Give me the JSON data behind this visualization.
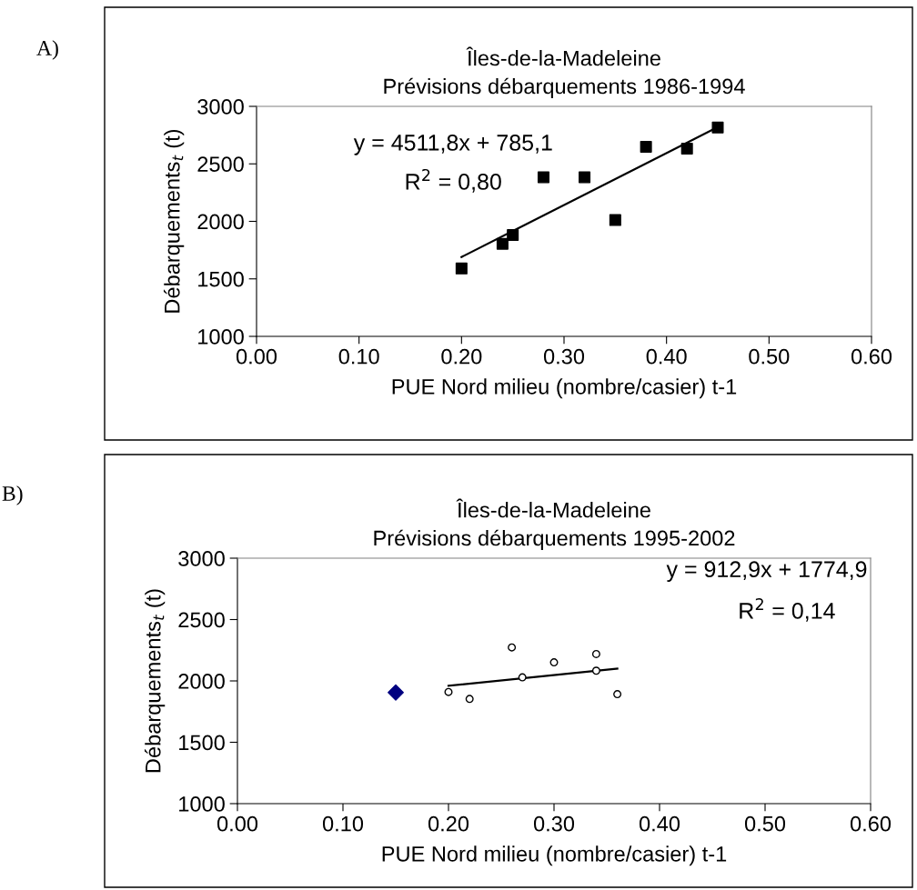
{
  "chart_data": [
    {
      "type": "scatter",
      "title": "Îles-de-la-Madeleine\nPrévisions débarquements 1986-1994",
      "xlabel": "PUE Nord milieu (nombre/casier) t-1",
      "ylabel": "Débarquements$_{t}$ (t)",
      "annotations": [
        "A)",
        "y = 4511,8x + 785,1",
        "R$^{2}$ = 0,80"
      ],
      "series": [
        {
          "marker": "square",
          "color": "#000000",
          "x": [
            0.2,
            0.24,
            0.25,
            0.28,
            0.32,
            0.35,
            0.38,
            0.42,
            0.45
          ],
          "values": [
            1590,
            1805,
            1881,
            2383,
            2383,
            2011,
            2648,
            2632,
            2816
          ]
        },
        {
          "type": "line",
          "marker": "none",
          "color": "#000000",
          "x": [
            0.2,
            0.45
          ],
          "values": [
            1690,
            2820
          ]
        }
      ],
      "xlim": [
        0,
        0.6
      ],
      "ylim": [
        1000,
        3000
      ],
      "xticks": [
        {
          "value": 0,
          "label": "0.00"
        },
        {
          "value": 0.1,
          "label": "0.10"
        },
        {
          "value": 0.2,
          "label": "0.20"
        },
        {
          "value": 0.3,
          "label": "0.30"
        },
        {
          "value": 0.4,
          "label": "0.40"
        },
        {
          "value": 0.5,
          "label": "0.50"
        },
        {
          "value": 0.6,
          "label": "0.60"
        }
      ],
      "yticks": [
        1000,
        1500,
        2000,
        2500,
        3000
      ],
      "grid": false,
      "legend": false
    },
    {
      "type": "scatter",
      "title": "Îles-de-la-Madeleine\nPrévisions débarquements 1995-2002",
      "xlabel": "PUE Nord milieu (nombre/casier) t-1",
      "ylabel": "Débarquements$_{t}$ (t)",
      "annotations": [
        "B)",
        "y = 912,9x + 1774,9",
        "R$^{2}$ = 0,14"
      ],
      "series": [
        {
          "marker": "circle",
          "color": "#000000",
          "x": [
            0.2,
            0.22,
            0.26,
            0.27,
            0.3,
            0.34,
            0.34,
            0.36
          ],
          "values": [
            1910,
            1853,
            2273,
            2029,
            2151,
            2219,
            2083,
            1892
          ]
        },
        {
          "marker": "diamond",
          "color": "#000080",
          "x": [
            0.15
          ],
          "values": [
            1906
          ]
        },
        {
          "type": "line",
          "marker": "none",
          "color": "#000000",
          "x": [
            0.2,
            0.36
          ],
          "values": [
            1960,
            2100
          ]
        }
      ],
      "xlim": [
        0,
        0.6
      ],
      "ylim": [
        1000,
        3000
      ],
      "xticks": [
        {
          "value": 0,
          "label": "0.00"
        },
        {
          "value": 0.1,
          "label": "0.10"
        },
        {
          "value": 0.2,
          "label": "0.20"
        },
        {
          "value": 0.3,
          "label": "0.30"
        },
        {
          "value": 0.4,
          "label": "0.40"
        },
        {
          "value": 0.5,
          "label": "0.50"
        },
        {
          "value": 0.6,
          "label": "0.60"
        }
      ],
      "yticks": [
        1000,
        1500,
        2000,
        2500,
        3000
      ],
      "grid": false,
      "legend": false
    }
  ]
}
